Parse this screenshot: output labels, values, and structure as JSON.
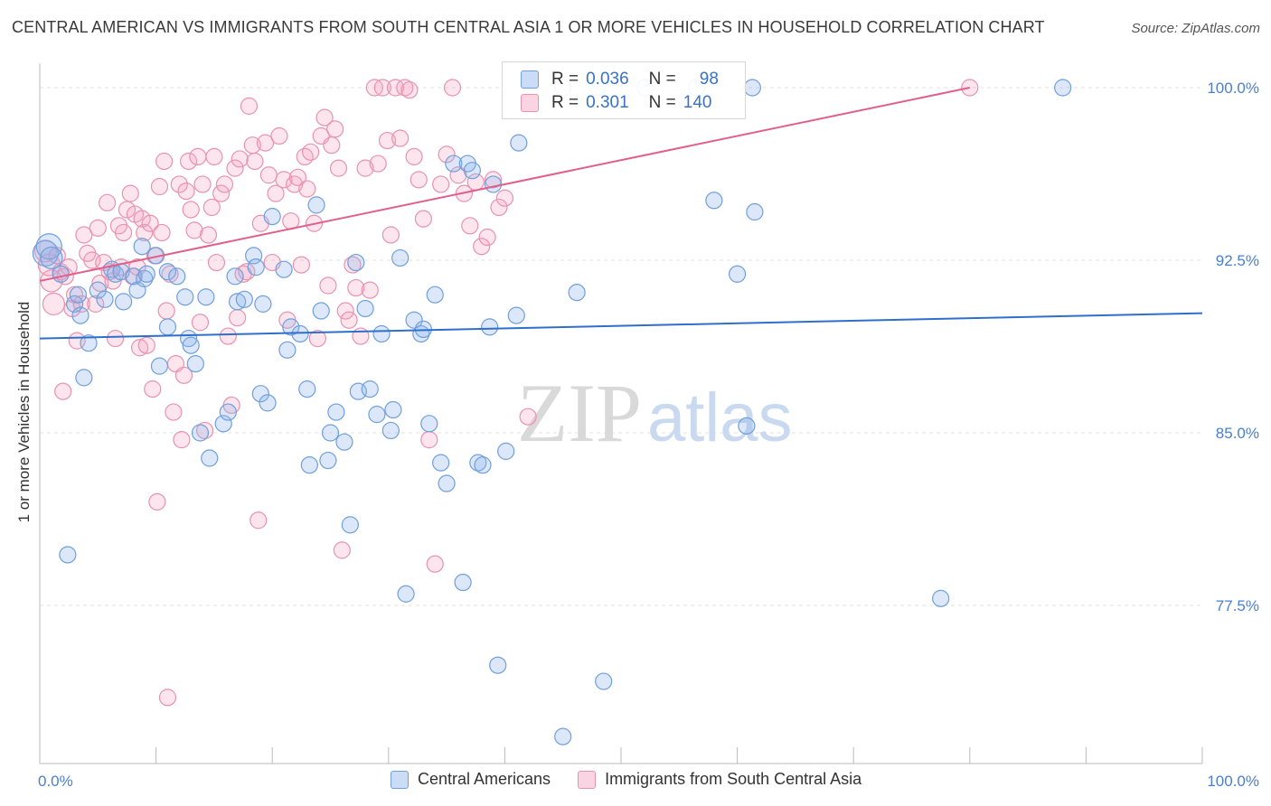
{
  "title": "CENTRAL AMERICAN VS IMMIGRANTS FROM SOUTH CENTRAL ASIA 1 OR MORE VEHICLES IN HOUSEHOLD CORRELATION CHART",
  "source": "Source: ZipAtlas.com",
  "watermark": "ZIPatlas",
  "colors": {
    "blue_fill": "rgba(140,180,235,0.30)",
    "blue_stroke": "#6f9fdc",
    "blue_line": "#2f6fcc",
    "pink_fill": "rgba(245,160,190,0.28)",
    "pink_stroke": "#e892b0",
    "pink_line": "#e0608c",
    "tick_text": "#4a7fd0",
    "grid": "#e0e0e0"
  },
  "stats": {
    "blue": {
      "r_label": "R =",
      "r_value": "0.036",
      "n_label": "N =",
      "n_value": "98"
    },
    "pink": {
      "r_label": "R =",
      "r_value": "0.301",
      "n_label": "N =",
      "n_value": "140"
    }
  },
  "chart_data": {
    "type": "scatter",
    "xlabel": "",
    "ylabel": "1 or more Vehicles in Household",
    "xlim": [
      0,
      100
    ],
    "ylim": [
      70.5,
      101.0
    ],
    "x_tick_labels": [
      {
        "v": 0,
        "t": "0.0%"
      },
      {
        "v": 100,
        "t": "100.0%"
      }
    ],
    "y_ticks": [
      {
        "v": 77.5,
        "t": "77.5%"
      },
      {
        "v": 85.0,
        "t": "85.0%"
      },
      {
        "v": 92.5,
        "t": "92.5%"
      },
      {
        "v": 100.0,
        "t": "100.0%"
      }
    ],
    "grid": true,
    "legend_position": "bottom-center",
    "series": [
      {
        "name": "Central Americans",
        "trend": [
          [
            0,
            89.1
          ],
          [
            100,
            90.2
          ]
        ],
        "points": [
          [
            0.5,
            92.8
          ],
          [
            0.8,
            93.1
          ],
          [
            1.0,
            92.6
          ],
          [
            1.8,
            91.9
          ],
          [
            2.4,
            79.7
          ],
          [
            3.0,
            90.6
          ],
          [
            3.3,
            91.0
          ],
          [
            3.5,
            90.1
          ],
          [
            3.8,
            87.4
          ],
          [
            4.2,
            88.9
          ],
          [
            5.0,
            91.2
          ],
          [
            5.6,
            90.8
          ],
          [
            6.2,
            92.1
          ],
          [
            6.5,
            91.9
          ],
          [
            7.0,
            92.0
          ],
          [
            7.2,
            90.7
          ],
          [
            8.1,
            91.8
          ],
          [
            8.4,
            91.2
          ],
          [
            8.8,
            93.1
          ],
          [
            9.0,
            91.7
          ],
          [
            9.2,
            91.9
          ],
          [
            10.0,
            92.7
          ],
          [
            10.3,
            87.9
          ],
          [
            11.0,
            92.0
          ],
          [
            11.0,
            89.6
          ],
          [
            11.8,
            91.8
          ],
          [
            12.5,
            90.9
          ],
          [
            12.8,
            89.1
          ],
          [
            13.0,
            88.8
          ],
          [
            13.4,
            88.0
          ],
          [
            13.8,
            85.0
          ],
          [
            14.3,
            90.9
          ],
          [
            14.6,
            83.9
          ],
          [
            15.8,
            85.4
          ],
          [
            16.2,
            85.9
          ],
          [
            16.8,
            91.8
          ],
          [
            17.0,
            90.7
          ],
          [
            17.6,
            90.8
          ],
          [
            18.4,
            92.7
          ],
          [
            18.6,
            92.2
          ],
          [
            19.0,
            86.7
          ],
          [
            19.2,
            90.6
          ],
          [
            19.6,
            86.3
          ],
          [
            20.0,
            94.4
          ],
          [
            21.0,
            92.1
          ],
          [
            21.3,
            88.6
          ],
          [
            21.6,
            89.6
          ],
          [
            22.4,
            89.3
          ],
          [
            23.0,
            86.9
          ],
          [
            23.2,
            83.6
          ],
          [
            23.8,
            94.9
          ],
          [
            24.2,
            90.3
          ],
          [
            24.8,
            83.8
          ],
          [
            25.0,
            85.0
          ],
          [
            25.5,
            85.9
          ],
          [
            26.2,
            84.6
          ],
          [
            26.7,
            81.0
          ],
          [
            27.2,
            92.4
          ],
          [
            27.4,
            86.8
          ],
          [
            28.0,
            90.4
          ],
          [
            28.4,
            86.9
          ],
          [
            29.0,
            85.8
          ],
          [
            29.4,
            89.3
          ],
          [
            30.2,
            85.1
          ],
          [
            30.4,
            86.0
          ],
          [
            31.0,
            92.6
          ],
          [
            31.5,
            78.0
          ],
          [
            32.2,
            89.9
          ],
          [
            32.8,
            89.3
          ],
          [
            33.0,
            89.5
          ],
          [
            33.5,
            85.4
          ],
          [
            34.0,
            91.0
          ],
          [
            34.5,
            83.7
          ],
          [
            35.0,
            82.8
          ],
          [
            35.6,
            96.7
          ],
          [
            36.4,
            78.5
          ],
          [
            36.8,
            96.7
          ],
          [
            37.2,
            96.4
          ],
          [
            37.7,
            83.7
          ],
          [
            38.1,
            83.6
          ],
          [
            38.7,
            89.6
          ],
          [
            39.0,
            95.8
          ],
          [
            39.4,
            74.9
          ],
          [
            40.1,
            84.2
          ],
          [
            41.0,
            90.1
          ],
          [
            41.2,
            97.6
          ],
          [
            45.0,
            100.0
          ],
          [
            45.0,
            71.8
          ],
          [
            46.2,
            91.1
          ],
          [
            48.0,
            100.0
          ],
          [
            48.5,
            74.2
          ],
          [
            52.1,
            100.0
          ],
          [
            56.5,
            100.0
          ],
          [
            58.0,
            95.1
          ],
          [
            60.0,
            91.9
          ],
          [
            60.8,
            85.3
          ],
          [
            61.3,
            100.0
          ],
          [
            61.5,
            94.6
          ],
          [
            77.5,
            77.8
          ],
          [
            88.0,
            100.0
          ]
        ]
      },
      {
        "name": "Immigrants from South Central Asia",
        "trend": [
          [
            0,
            91.6
          ],
          [
            80,
            100.0
          ]
        ],
        "points": [
          [
            0.5,
            92.9
          ],
          [
            0.8,
            92.3
          ],
          [
            1.0,
            91.6
          ],
          [
            1.2,
            90.6
          ],
          [
            1.5,
            92.7
          ],
          [
            1.8,
            92.0
          ],
          [
            2.0,
            86.8
          ],
          [
            2.2,
            91.8
          ],
          [
            2.5,
            92.2
          ],
          [
            2.8,
            90.4
          ],
          [
            3.0,
            91.0
          ],
          [
            3.2,
            89.0
          ],
          [
            3.6,
            90.6
          ],
          [
            3.8,
            93.6
          ],
          [
            4.1,
            92.8
          ],
          [
            4.5,
            92.5
          ],
          [
            4.8,
            90.6
          ],
          [
            5.0,
            93.9
          ],
          [
            5.2,
            91.5
          ],
          [
            5.5,
            92.4
          ],
          [
            5.8,
            95.0
          ],
          [
            6.0,
            92.0
          ],
          [
            6.3,
            91.6
          ],
          [
            6.5,
            89.1
          ],
          [
            6.8,
            94.0
          ],
          [
            7.0,
            92.2
          ],
          [
            7.2,
            93.7
          ],
          [
            7.5,
            94.7
          ],
          [
            7.8,
            95.4
          ],
          [
            8.0,
            91.8
          ],
          [
            8.2,
            94.5
          ],
          [
            8.4,
            92.2
          ],
          [
            8.6,
            88.7
          ],
          [
            8.8,
            94.3
          ],
          [
            9.0,
            93.7
          ],
          [
            9.2,
            88.8
          ],
          [
            9.5,
            94.1
          ],
          [
            9.7,
            86.9
          ],
          [
            9.9,
            92.7
          ],
          [
            10.1,
            82.0
          ],
          [
            10.3,
            95.7
          ],
          [
            10.5,
            93.7
          ],
          [
            10.7,
            96.8
          ],
          [
            10.9,
            90.3
          ],
          [
            11.0,
            73.5
          ],
          [
            11.2,
            91.9
          ],
          [
            11.5,
            85.9
          ],
          [
            11.7,
            88.0
          ],
          [
            12.0,
            95.8
          ],
          [
            12.2,
            84.7
          ],
          [
            12.4,
            87.5
          ],
          [
            12.6,
            95.5
          ],
          [
            12.8,
            96.8
          ],
          [
            13.0,
            94.7
          ],
          [
            13.3,
            93.8
          ],
          [
            13.6,
            97.0
          ],
          [
            13.8,
            89.8
          ],
          [
            14.0,
            95.8
          ],
          [
            14.2,
            85.1
          ],
          [
            14.5,
            93.6
          ],
          [
            14.8,
            94.8
          ],
          [
            15.0,
            97.0
          ],
          [
            15.2,
            92.4
          ],
          [
            15.6,
            95.4
          ],
          [
            15.9,
            95.8
          ],
          [
            16.2,
            89.2
          ],
          [
            16.5,
            86.2
          ],
          [
            16.8,
            96.5
          ],
          [
            17.0,
            90.0
          ],
          [
            17.2,
            96.9
          ],
          [
            17.5,
            91.9
          ],
          [
            17.8,
            92.0
          ],
          [
            18.0,
            99.2
          ],
          [
            18.3,
            97.5
          ],
          [
            18.5,
            96.8
          ],
          [
            18.8,
            81.2
          ],
          [
            19.0,
            94.1
          ],
          [
            19.4,
            97.6
          ],
          [
            19.7,
            96.2
          ],
          [
            20.0,
            92.4
          ],
          [
            20.3,
            95.4
          ],
          [
            20.6,
            97.9
          ],
          [
            21.0,
            96.0
          ],
          [
            21.3,
            89.9
          ],
          [
            21.6,
            94.2
          ],
          [
            21.9,
            95.8
          ],
          [
            22.2,
            96.1
          ],
          [
            22.5,
            92.3
          ],
          [
            22.8,
            97.0
          ],
          [
            23.0,
            95.6
          ],
          [
            23.3,
            97.2
          ],
          [
            23.6,
            94.1
          ],
          [
            23.9,
            89.1
          ],
          [
            24.2,
            97.9
          ],
          [
            24.5,
            98.7
          ],
          [
            24.8,
            91.4
          ],
          [
            25.1,
            97.5
          ],
          [
            25.4,
            98.2
          ],
          [
            25.7,
            96.5
          ],
          [
            26.0,
            79.9
          ],
          [
            26.3,
            90.3
          ],
          [
            26.6,
            89.9
          ],
          [
            26.9,
            92.3
          ],
          [
            27.2,
            91.3
          ],
          [
            27.6,
            89.2
          ],
          [
            28.0,
            96.5
          ],
          [
            28.4,
            91.2
          ],
          [
            28.8,
            100.0
          ],
          [
            29.1,
            96.7
          ],
          [
            29.5,
            100.0
          ],
          [
            29.9,
            97.7
          ],
          [
            30.2,
            93.6
          ],
          [
            30.6,
            100.0
          ],
          [
            31.0,
            97.8
          ],
          [
            31.4,
            100.0
          ],
          [
            31.8,
            99.9
          ],
          [
            32.2,
            97.0
          ],
          [
            32.6,
            96.0
          ],
          [
            33.0,
            94.3
          ],
          [
            33.5,
            84.7
          ],
          [
            34.0,
            79.3
          ],
          [
            34.5,
            95.8
          ],
          [
            35.0,
            97.1
          ],
          [
            35.5,
            100.0
          ],
          [
            36.0,
            96.2
          ],
          [
            36.5,
            95.4
          ],
          [
            37.0,
            94.0
          ],
          [
            37.5,
            95.9
          ],
          [
            38.0,
            93.1
          ],
          [
            38.5,
            93.5
          ],
          [
            39.0,
            96.0
          ],
          [
            39.5,
            94.8
          ],
          [
            40.0,
            95.2
          ],
          [
            42.0,
            85.7
          ],
          [
            80.0,
            100.0
          ]
        ]
      }
    ]
  }
}
